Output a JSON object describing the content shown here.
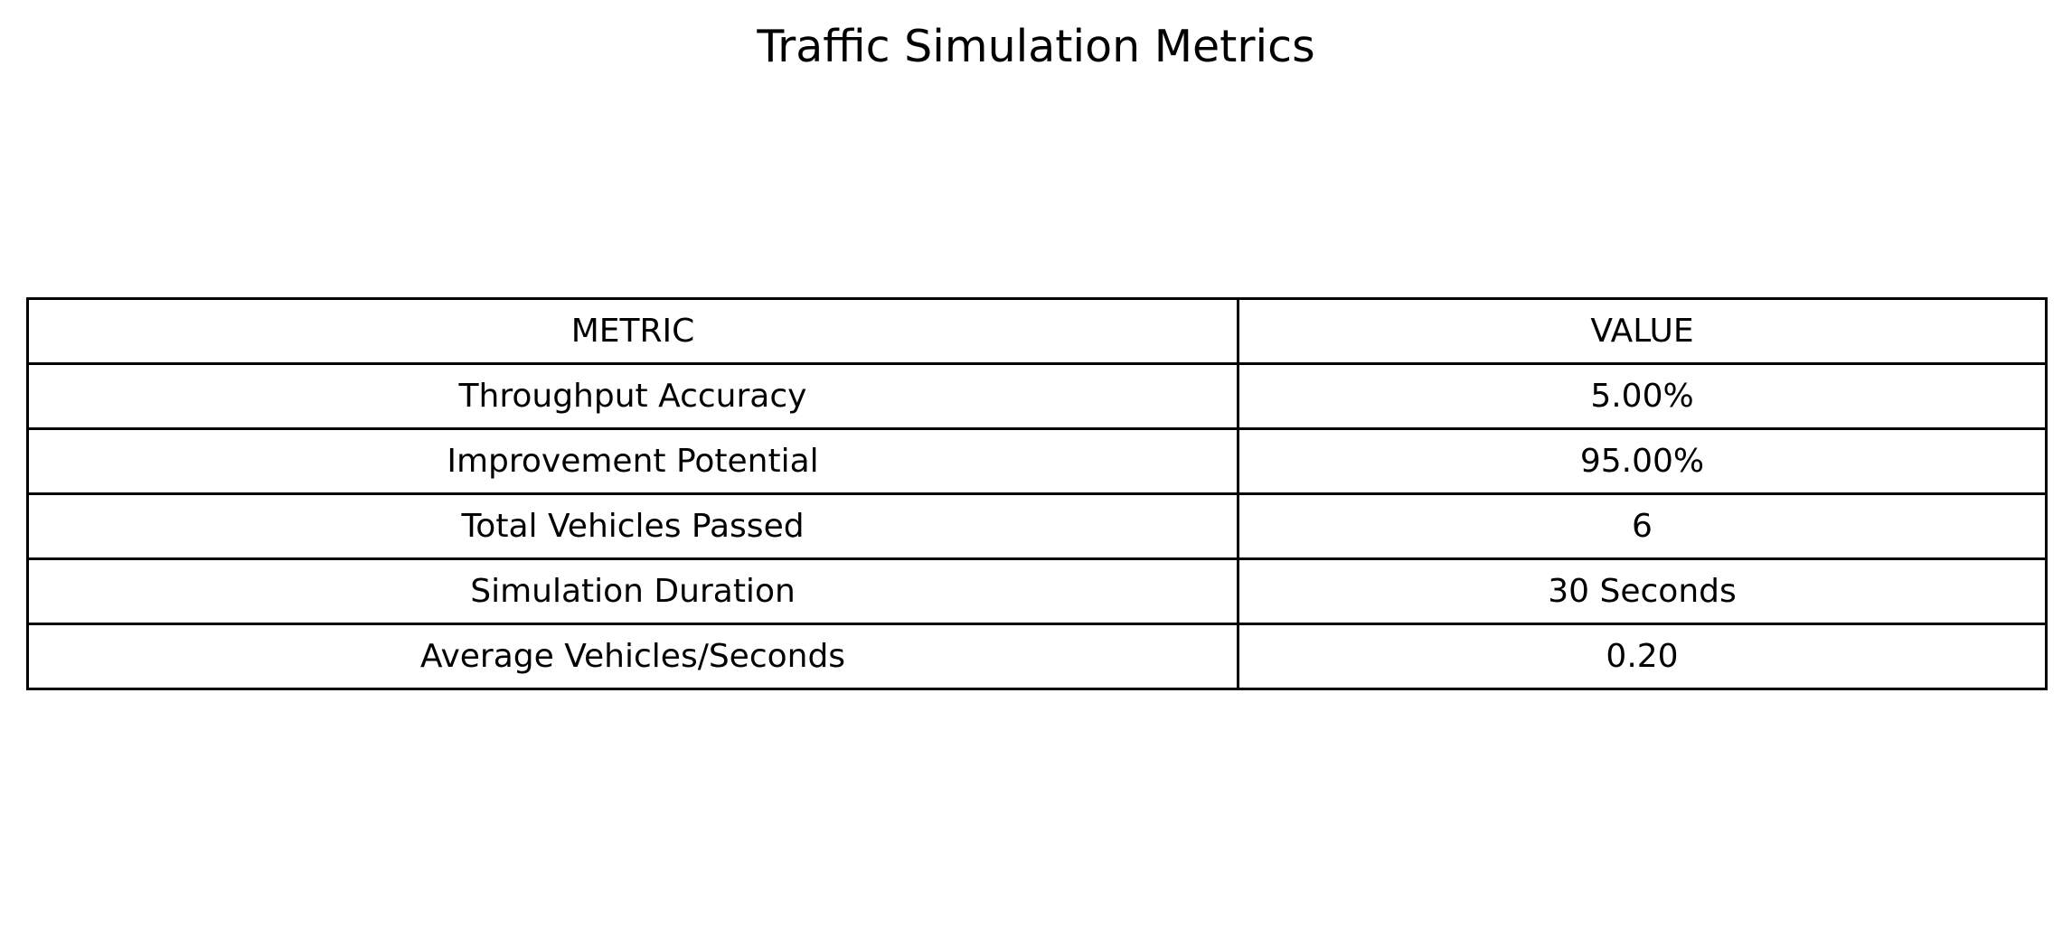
{
  "chart_data": {
    "type": "table",
    "title": "Traffic Simulation Metrics",
    "columns": [
      "METRIC",
      "VALUE"
    ],
    "rows": [
      [
        "Throughput Accuracy",
        "5.00%"
      ],
      [
        "Improvement Potential",
        "95.00%"
      ],
      [
        "Total Vehicles Passed",
        "6"
      ],
      [
        "Simulation Duration",
        "30 Seconds"
      ],
      [
        "Average Vehicles/Seconds",
        "0.20"
      ]
    ]
  }
}
